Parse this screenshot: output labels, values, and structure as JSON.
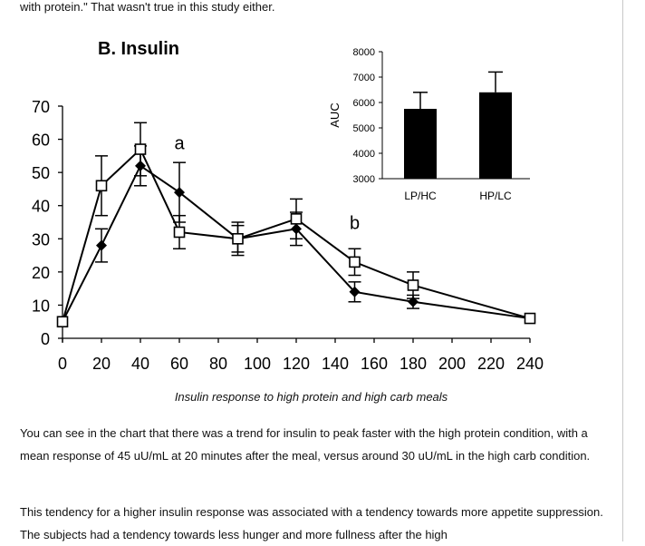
{
  "article": {
    "top_text": "with protein.\"  That wasn't true in this study either.",
    "caption": "Insulin response to high protein and high carb meals",
    "paragraph_1": "You can see in the chart that there was a trend for insulin to peak faster with the high protein condition, with a mean response of 45 uU/mL at 20 minutes after the meal, versus around 30 uU/mL in the high carb condition.",
    "paragraph_2": "This tendency for a higher insulin response was associated with a tendency towards more appetite suppression.  The subjects had a tendency towards less hunger and more fullness after the high"
  },
  "chart_data": [
    {
      "type": "line",
      "title": "B. Insulin",
      "x": [
        0,
        20,
        40,
        60,
        90,
        120,
        150,
        180,
        240
      ],
      "x_ticks": [
        0,
        20,
        40,
        60,
        80,
        100,
        120,
        140,
        160,
        180,
        200,
        220,
        240
      ],
      "y_ticks": [
        0,
        10,
        20,
        30,
        40,
        50,
        60,
        70
      ],
      "ylim": [
        0,
        70
      ],
      "xlim": [
        0,
        240
      ],
      "series": [
        {
          "name": "filled diamond",
          "marker": "diamond-filled",
          "values": [
            5,
            28,
            52,
            44,
            30,
            33,
            14,
            11,
            6
          ],
          "errors": [
            0,
            5,
            6,
            9,
            4,
            5,
            3,
            2,
            0
          ]
        },
        {
          "name": "open square",
          "marker": "square-open",
          "values": [
            5,
            46,
            57,
            32,
            30,
            36,
            23,
            16,
            6
          ],
          "errors": [
            0,
            9,
            8,
            5,
            5,
            6,
            4,
            4,
            0
          ]
        }
      ],
      "annotations": [
        {
          "text": "a",
          "x": 60,
          "y": 57
        },
        {
          "text": "b",
          "x": 150,
          "y": 33
        }
      ]
    },
    {
      "type": "bar",
      "categories": [
        "LP/HC",
        "HP/LC"
      ],
      "values": [
        5750,
        6400
      ],
      "errors": [
        650,
        800
      ],
      "ylabel": "AUC",
      "ylim": [
        3000,
        8000
      ],
      "y_ticks": [
        3000,
        4000,
        5000,
        6000,
        7000,
        8000
      ]
    }
  ],
  "colors": {
    "line": "#000000",
    "background": "#ffffff",
    "text": "#111111",
    "border": "#c8c8c8"
  }
}
